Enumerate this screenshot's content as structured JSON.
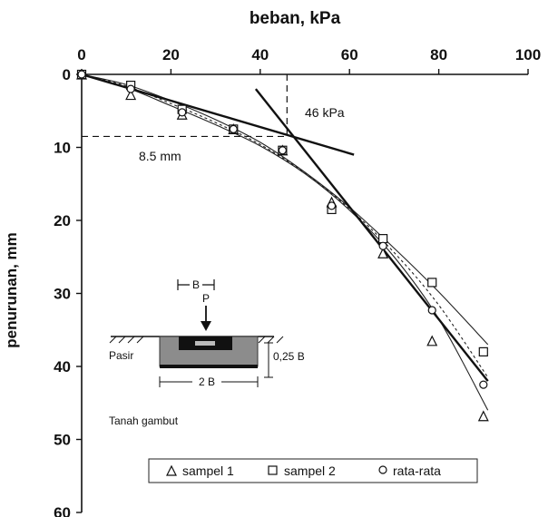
{
  "chart_data": {
    "type": "scatter",
    "title": "",
    "xlabel": "beban, kPa",
    "ylabel": "penurunan, mm",
    "xlim": [
      0,
      100
    ],
    "ylim": [
      0,
      60
    ],
    "y_inverted": true,
    "x_axis_position": "top",
    "x_ticks": [
      0,
      20,
      40,
      60,
      80,
      100
    ],
    "y_ticks": [
      0,
      10,
      20,
      30,
      40,
      50,
      60
    ],
    "grid": false,
    "legend_position": "bottom-center",
    "series": [
      {
        "name": "sampel 1",
        "marker": "triangle",
        "x": [
          0,
          11,
          22.5,
          34,
          45,
          56,
          67.5,
          78.5,
          90
        ],
        "y": [
          0,
          2.8,
          5.5,
          7.5,
          10.4,
          17.5,
          24.5,
          36.5,
          46.8
        ]
      },
      {
        "name": "sampel 2",
        "marker": "square",
        "x": [
          0,
          11,
          22.5,
          34,
          45,
          56,
          67.5,
          78.5,
          90
        ],
        "y": [
          0,
          1.5,
          4.8,
          7.5,
          10.4,
          18.5,
          22.5,
          28.5,
          38.0
        ]
      },
      {
        "name": "rata-rata",
        "marker": "circle",
        "x": [
          0,
          11,
          22.5,
          34,
          45,
          56,
          67.5,
          78.5,
          90
        ],
        "y": [
          0,
          2.0,
          5.2,
          7.5,
          10.4,
          18.0,
          23.5,
          32.3,
          42.5
        ]
      }
    ],
    "fit_curves": [
      {
        "x": [
          0,
          10,
          20,
          30,
          40,
          50,
          60,
          70,
          80,
          91
        ],
        "y": [
          0,
          1.8,
          4.3,
          6.9,
          9.8,
          13.6,
          18.6,
          25.0,
          33.5,
          46.0
        ]
      },
      {
        "x": [
          0,
          10,
          20,
          30,
          40,
          50,
          60,
          70,
          80,
          91
        ],
        "y": [
          0,
          1.4,
          3.6,
          6.2,
          9.3,
          13.4,
          18.2,
          23.8,
          29.8,
          37.0
        ]
      },
      {
        "x": [
          0,
          10,
          20,
          30,
          40,
          50,
          60,
          70,
          80,
          91
        ],
        "y": [
          0,
          1.6,
          4.0,
          6.6,
          9.6,
          13.5,
          18.4,
          24.4,
          31.6,
          41.5
        ]
      }
    ],
    "tangent_lines": [
      {
        "x": [
          0,
          61
        ],
        "y": [
          0,
          11
        ]
      },
      {
        "x": [
          39,
          91
        ],
        "y": [
          2,
          42
        ]
      }
    ],
    "reference_lines": {
      "vertical_x": 46,
      "horizontal_y": 8.5
    },
    "annotations": {
      "load_label": "46 kPa",
      "settlement_label": "8.5 mm"
    },
    "inset": {
      "width_label": "B",
      "load_label": "P",
      "sand_label": "Pasir",
      "depth_label": "0,25 B",
      "base_label": "2 B",
      "soil_label": "Tanah gambut"
    },
    "colors": {
      "axis": "#111111",
      "curve": "#222222",
      "sand_fill": "#8c8c8c",
      "footing": "#111111"
    }
  }
}
